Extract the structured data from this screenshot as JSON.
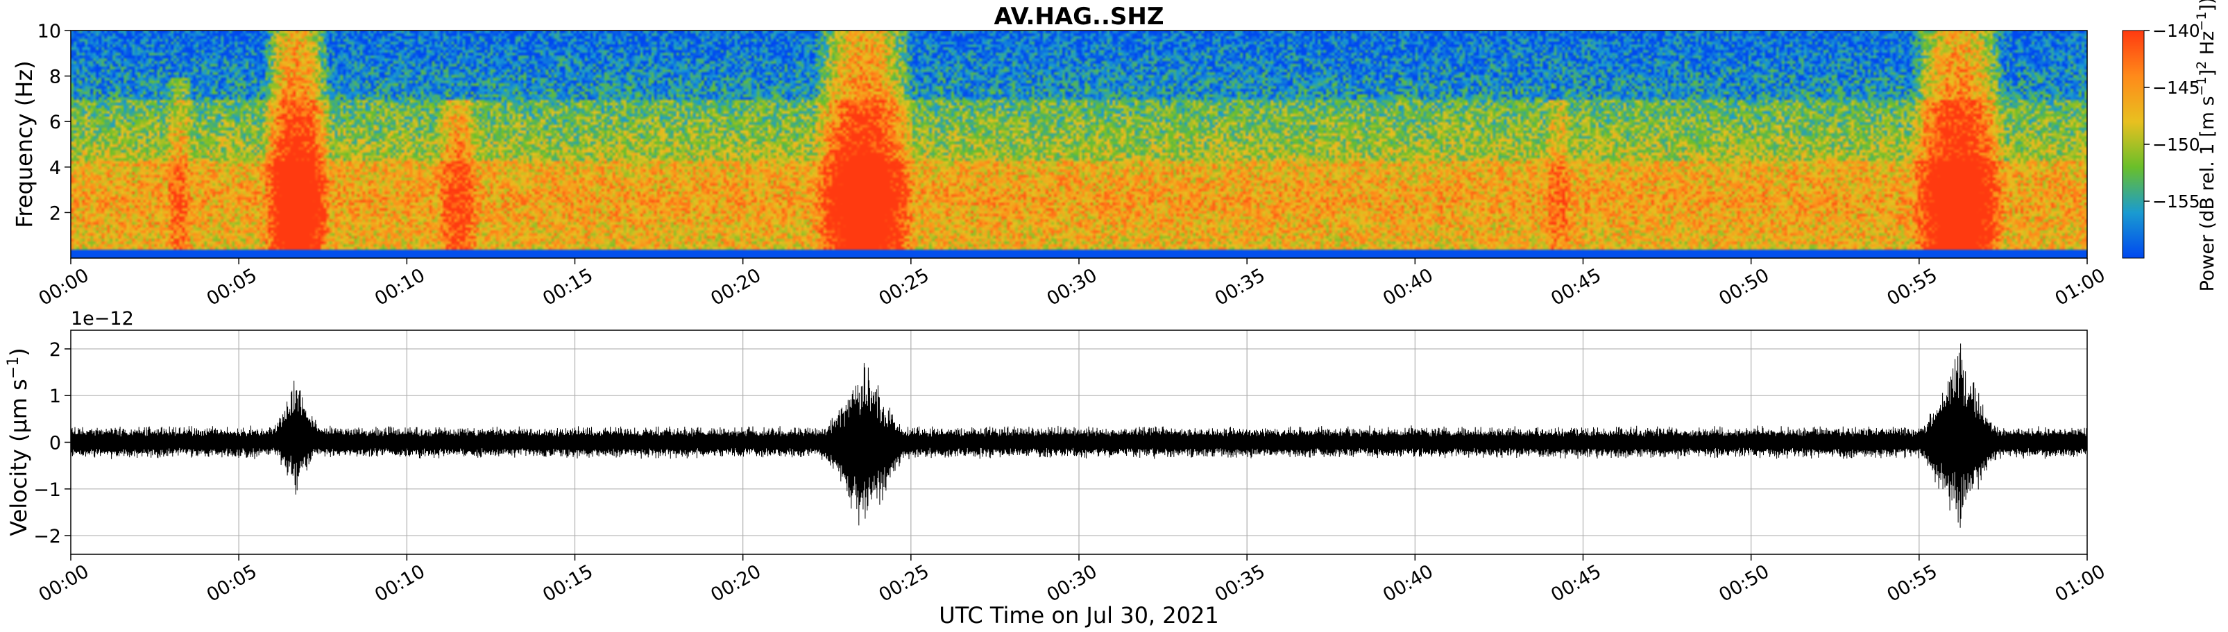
{
  "figure": {
    "title": "AV.HAG..SHZ",
    "colors": {
      "background": "#ffffff",
      "trace": "#000000",
      "grid": "#b0b0b0"
    }
  },
  "chart_data": [
    {
      "type": "heatmap",
      "title": "AV.HAG..SHZ",
      "xlabel": "",
      "ylabel": "Frequency (Hz)",
      "x_ticks": [
        "00:00",
        "00:05",
        "00:10",
        "00:15",
        "00:20",
        "00:25",
        "00:30",
        "00:35",
        "00:40",
        "00:45",
        "00:50",
        "00:55",
        "01:00"
      ],
      "xlim_minutes": [
        0,
        60
      ],
      "y_ticks": [
        2,
        4,
        6,
        8,
        10
      ],
      "ylim": [
        0,
        10
      ],
      "colorbar": {
        "label_prefix": "Power (dB rel. 1 [m s",
        "label_mid": "]",
        "label_suffix": " Hz",
        "label_end": "])",
        "exp_m1": "−1",
        "exp_2": "2",
        "ticks": [
          -140,
          -145,
          -150,
          -155
        ],
        "tick_labels": [
          "−140",
          "−145",
          "−150",
          "−155"
        ],
        "range": [
          -160,
          -140
        ],
        "colormap": [
          "#0048f0",
          "#1a9bd0",
          "#6abf2a",
          "#e8c020",
          "#ff8a1a",
          "#ff3a10"
        ]
      },
      "events": [
        {
          "center_min": 6.7,
          "width_min": 1.0,
          "top_hz": 10,
          "strength": 1.0
        },
        {
          "center_min": 23.6,
          "width_min": 1.5,
          "top_hz": 10,
          "strength": 1.0
        },
        {
          "center_min": 56.2,
          "width_min": 1.4,
          "top_hz": 10,
          "strength": 1.0
        },
        {
          "center_min": 11.5,
          "width_min": 0.6,
          "top_hz": 7,
          "strength": 0.5
        },
        {
          "center_min": 3.2,
          "width_min": 0.4,
          "top_hz": 8,
          "strength": 0.35
        },
        {
          "center_min": 44.3,
          "width_min": 0.4,
          "top_hz": 7,
          "strength": 0.3
        }
      ]
    },
    {
      "type": "line",
      "title": "",
      "xlabel": "UTC Time on Jul 30, 2021",
      "ylabel_prefix": "Velocity (μm s",
      "ylabel_exp": "−1",
      "ylabel_suffix": ")",
      "offset_text": "1e−12",
      "x_ticks": [
        "00:00",
        "00:05",
        "00:10",
        "00:15",
        "00:20",
        "00:25",
        "00:30",
        "00:35",
        "00:40",
        "00:45",
        "00:50",
        "00:55",
        "01:00"
      ],
      "xlim_minutes": [
        0,
        60
      ],
      "y_ticks": [
        2,
        1,
        0,
        -1,
        -2
      ],
      "y_tick_labels": [
        "2",
        "1",
        "0",
        "−1",
        "−2"
      ],
      "ylim": [
        -2.4,
        2.4
      ],
      "grid": true,
      "background_amplitude": 0.28,
      "events": [
        {
          "center_min": 6.7,
          "width_min": 1.0,
          "peak_pos": 1.55,
          "peak_neg": -1.2
        },
        {
          "center_min": 23.6,
          "width_min": 1.6,
          "peak_pos": 1.95,
          "peak_neg": -2.2
        },
        {
          "center_min": 56.2,
          "width_min": 1.5,
          "peak_pos": 2.2,
          "peak_neg": -2.15
        }
      ]
    }
  ]
}
